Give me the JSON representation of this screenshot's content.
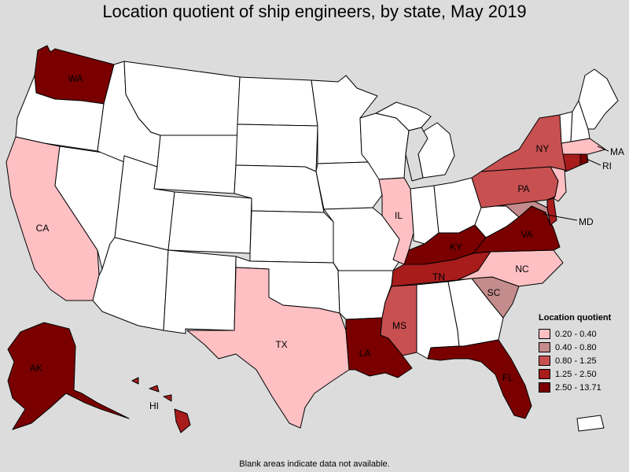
{
  "title": "Location quotient of ship engineers, by state, May 2019",
  "footnote": "Blank areas indicate data not available.",
  "legend": {
    "title": "Location quotient",
    "items": [
      {
        "label": "0.20 - 0.40",
        "color": "#ffc0c4"
      },
      {
        "label": "0.40 - 0.80",
        "color": "#c48c8c"
      },
      {
        "label": "0.80 - 1.25",
        "color": "#c85050"
      },
      {
        "label": "1.25 - 2.50",
        "color": "#a81c1c"
      },
      {
        "label": "2.50 - 13.71",
        "color": "#7a0000"
      }
    ]
  },
  "colors": {
    "white": "#ffffff",
    "na": "#dcdcdc"
  },
  "state_labels": {
    "WA": "WA",
    "CA": "CA",
    "IL": "IL",
    "NY": "NY",
    "PA": "PA",
    "MA": "MA",
    "RI": "RI",
    "MD": "MD",
    "VA": "VA",
    "KY": "KY",
    "NC": "NC",
    "TN": "TN",
    "SC": "SC",
    "MS": "MS",
    "LA": "LA",
    "TX": "TX",
    "FL": "FL",
    "AK": "AK",
    "HI": "HI"
  },
  "state_classes": {
    "WA": 4,
    "CA": 0,
    "IL": 0,
    "NY": 2,
    "PA": 2,
    "MA": 0,
    "RI": 4,
    "MD": 1,
    "VA": 4,
    "KY": 4,
    "NC": 0,
    "TN": 3,
    "SC": 1,
    "MS": 2,
    "LA": 4,
    "TX": 0,
    "FL": 4,
    "AK": 4,
    "HI": 3,
    "DE": 3,
    "NJ": 0,
    "CT": 3
  }
}
